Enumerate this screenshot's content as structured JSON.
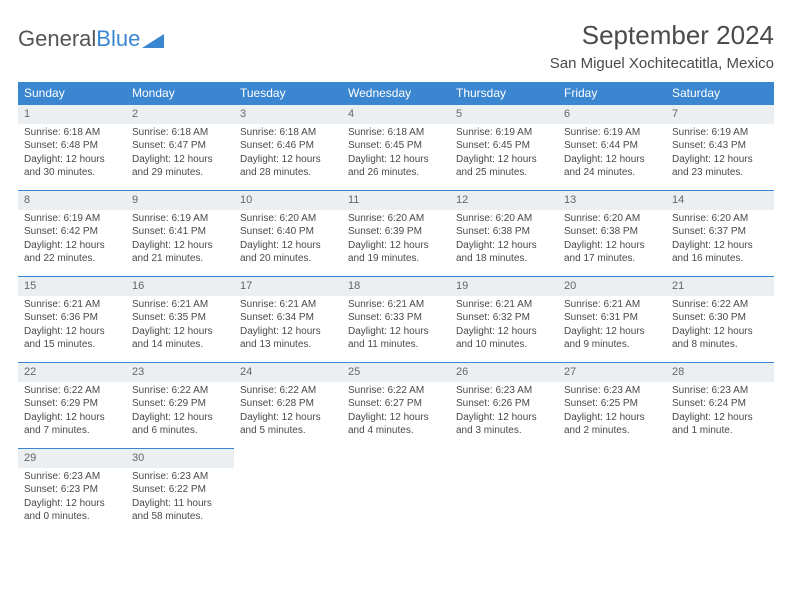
{
  "logo": {
    "textGray": "General",
    "textBlue": "Blue"
  },
  "title": "September 2024",
  "location": "San Miguel Xochitecatitla, Mexico",
  "colors": {
    "headerBg": "#3a86d0",
    "headerText": "#ffffff",
    "dayRowBg": "#eceff1",
    "dayRowBorder": "#3a86d0",
    "bodyText": "#4a4a4a",
    "pageBg": "#ffffff"
  },
  "typography": {
    "titleFontSize": 26,
    "locationFontSize": 15,
    "weekdayFontSize": 12,
    "dayNumFontSize": 11,
    "cellFontSize": 10
  },
  "weekdays": [
    "Sunday",
    "Monday",
    "Tuesday",
    "Wednesday",
    "Thursday",
    "Friday",
    "Saturday"
  ],
  "weeks": [
    [
      {
        "day": "1",
        "sunrise": "Sunrise: 6:18 AM",
        "sunset": "Sunset: 6:48 PM",
        "daylight": "Daylight: 12 hours and 30 minutes."
      },
      {
        "day": "2",
        "sunrise": "Sunrise: 6:18 AM",
        "sunset": "Sunset: 6:47 PM",
        "daylight": "Daylight: 12 hours and 29 minutes."
      },
      {
        "day": "3",
        "sunrise": "Sunrise: 6:18 AM",
        "sunset": "Sunset: 6:46 PM",
        "daylight": "Daylight: 12 hours and 28 minutes."
      },
      {
        "day": "4",
        "sunrise": "Sunrise: 6:18 AM",
        "sunset": "Sunset: 6:45 PM",
        "daylight": "Daylight: 12 hours and 26 minutes."
      },
      {
        "day": "5",
        "sunrise": "Sunrise: 6:19 AM",
        "sunset": "Sunset: 6:45 PM",
        "daylight": "Daylight: 12 hours and 25 minutes."
      },
      {
        "day": "6",
        "sunrise": "Sunrise: 6:19 AM",
        "sunset": "Sunset: 6:44 PM",
        "daylight": "Daylight: 12 hours and 24 minutes."
      },
      {
        "day": "7",
        "sunrise": "Sunrise: 6:19 AM",
        "sunset": "Sunset: 6:43 PM",
        "daylight": "Daylight: 12 hours and 23 minutes."
      }
    ],
    [
      {
        "day": "8",
        "sunrise": "Sunrise: 6:19 AM",
        "sunset": "Sunset: 6:42 PM",
        "daylight": "Daylight: 12 hours and 22 minutes."
      },
      {
        "day": "9",
        "sunrise": "Sunrise: 6:19 AM",
        "sunset": "Sunset: 6:41 PM",
        "daylight": "Daylight: 12 hours and 21 minutes."
      },
      {
        "day": "10",
        "sunrise": "Sunrise: 6:20 AM",
        "sunset": "Sunset: 6:40 PM",
        "daylight": "Daylight: 12 hours and 20 minutes."
      },
      {
        "day": "11",
        "sunrise": "Sunrise: 6:20 AM",
        "sunset": "Sunset: 6:39 PM",
        "daylight": "Daylight: 12 hours and 19 minutes."
      },
      {
        "day": "12",
        "sunrise": "Sunrise: 6:20 AM",
        "sunset": "Sunset: 6:38 PM",
        "daylight": "Daylight: 12 hours and 18 minutes."
      },
      {
        "day": "13",
        "sunrise": "Sunrise: 6:20 AM",
        "sunset": "Sunset: 6:38 PM",
        "daylight": "Daylight: 12 hours and 17 minutes."
      },
      {
        "day": "14",
        "sunrise": "Sunrise: 6:20 AM",
        "sunset": "Sunset: 6:37 PM",
        "daylight": "Daylight: 12 hours and 16 minutes."
      }
    ],
    [
      {
        "day": "15",
        "sunrise": "Sunrise: 6:21 AM",
        "sunset": "Sunset: 6:36 PM",
        "daylight": "Daylight: 12 hours and 15 minutes."
      },
      {
        "day": "16",
        "sunrise": "Sunrise: 6:21 AM",
        "sunset": "Sunset: 6:35 PM",
        "daylight": "Daylight: 12 hours and 14 minutes."
      },
      {
        "day": "17",
        "sunrise": "Sunrise: 6:21 AM",
        "sunset": "Sunset: 6:34 PM",
        "daylight": "Daylight: 12 hours and 13 minutes."
      },
      {
        "day": "18",
        "sunrise": "Sunrise: 6:21 AM",
        "sunset": "Sunset: 6:33 PM",
        "daylight": "Daylight: 12 hours and 11 minutes."
      },
      {
        "day": "19",
        "sunrise": "Sunrise: 6:21 AM",
        "sunset": "Sunset: 6:32 PM",
        "daylight": "Daylight: 12 hours and 10 minutes."
      },
      {
        "day": "20",
        "sunrise": "Sunrise: 6:21 AM",
        "sunset": "Sunset: 6:31 PM",
        "daylight": "Daylight: 12 hours and 9 minutes."
      },
      {
        "day": "21",
        "sunrise": "Sunrise: 6:22 AM",
        "sunset": "Sunset: 6:30 PM",
        "daylight": "Daylight: 12 hours and 8 minutes."
      }
    ],
    [
      {
        "day": "22",
        "sunrise": "Sunrise: 6:22 AM",
        "sunset": "Sunset: 6:29 PM",
        "daylight": "Daylight: 12 hours and 7 minutes."
      },
      {
        "day": "23",
        "sunrise": "Sunrise: 6:22 AM",
        "sunset": "Sunset: 6:29 PM",
        "daylight": "Daylight: 12 hours and 6 minutes."
      },
      {
        "day": "24",
        "sunrise": "Sunrise: 6:22 AM",
        "sunset": "Sunset: 6:28 PM",
        "daylight": "Daylight: 12 hours and 5 minutes."
      },
      {
        "day": "25",
        "sunrise": "Sunrise: 6:22 AM",
        "sunset": "Sunset: 6:27 PM",
        "daylight": "Daylight: 12 hours and 4 minutes."
      },
      {
        "day": "26",
        "sunrise": "Sunrise: 6:23 AM",
        "sunset": "Sunset: 6:26 PM",
        "daylight": "Daylight: 12 hours and 3 minutes."
      },
      {
        "day": "27",
        "sunrise": "Sunrise: 6:23 AM",
        "sunset": "Sunset: 6:25 PM",
        "daylight": "Daylight: 12 hours and 2 minutes."
      },
      {
        "day": "28",
        "sunrise": "Sunrise: 6:23 AM",
        "sunset": "Sunset: 6:24 PM",
        "daylight": "Daylight: 12 hours and 1 minute."
      }
    ],
    [
      {
        "day": "29",
        "sunrise": "Sunrise: 6:23 AM",
        "sunset": "Sunset: 6:23 PM",
        "daylight": "Daylight: 12 hours and 0 minutes."
      },
      {
        "day": "30",
        "sunrise": "Sunrise: 6:23 AM",
        "sunset": "Sunset: 6:22 PM",
        "daylight": "Daylight: 11 hours and 58 minutes."
      },
      null,
      null,
      null,
      null,
      null
    ]
  ]
}
